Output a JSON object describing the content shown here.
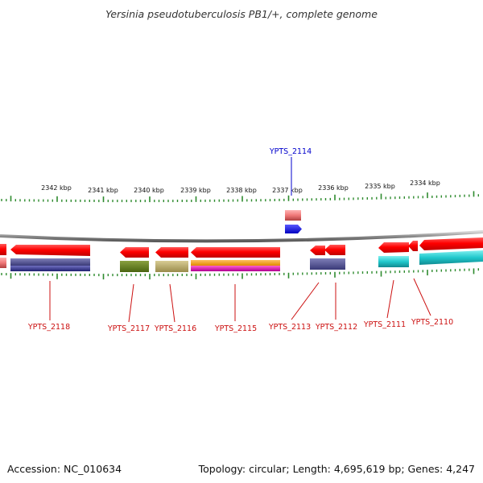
{
  "title": "Yersinia pseudotuberculosis PB1/+, complete genome",
  "footer": {
    "accession": "Accession: NC_010634",
    "summary": "Topology: circular; Length: 4,695,619 bp; Genes: 4,247"
  },
  "colors": {
    "backbone": "#8c8c8c",
    "tick": "#2e8b2e",
    "forward_label": "#0000cc",
    "reverse_label": "#cc1111",
    "gene_arrow": "#ff0000"
  },
  "scale": {
    "ticks_kbp": [
      2342,
      2341,
      2340,
      2339,
      2338,
      2337,
      2336,
      2335,
      2334
    ],
    "tick_labels": [
      "2342 kbp",
      "2341 kbp",
      "2340 kbp",
      "2339 kbp",
      "2338 kbp",
      "2337 kbp",
      "2336 kbp",
      "2335 kbp",
      "2334 kbp"
    ]
  },
  "genes": {
    "forward": [
      {
        "label": "YPTS_2114"
      }
    ],
    "reverse": [
      {
        "label": "YPTS_2118"
      },
      {
        "label": "YPTS_2117"
      },
      {
        "label": "YPTS_2116"
      },
      {
        "label": "YPTS_2115"
      },
      {
        "label": "YPTS_2113"
      },
      {
        "label": "YPTS_2112"
      },
      {
        "label": "YPTS_2111"
      },
      {
        "label": "YPTS_2110"
      }
    ]
  }
}
